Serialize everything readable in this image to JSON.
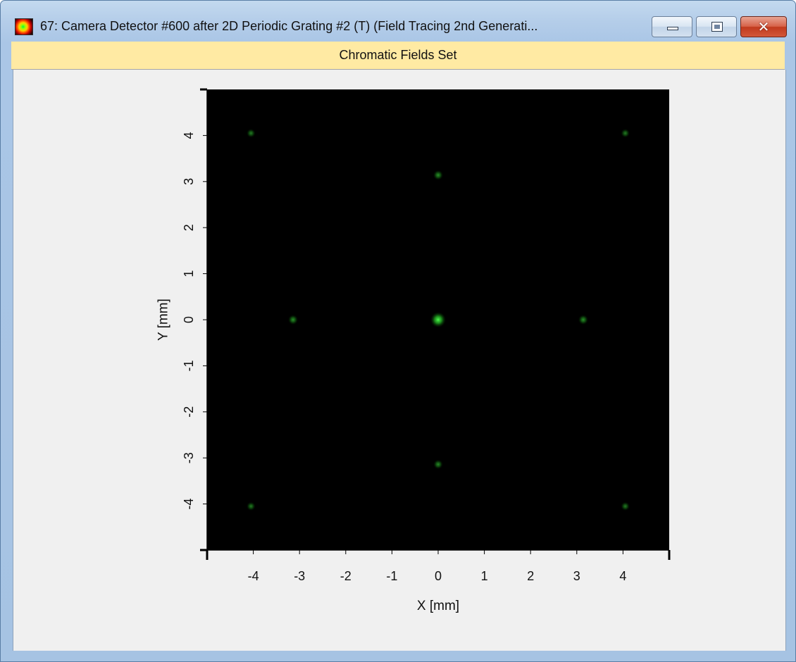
{
  "window": {
    "title": "67: Camera Detector #600 after 2D Periodic Grating #2 (T) (Field Tracing 2nd Generati...",
    "icon": "chromatic-field-icon",
    "minimize_icon": "minimize-icon",
    "maximize_icon": "restore-icon",
    "close_glyph": "✕"
  },
  "header": {
    "label": "Chromatic Fields Set"
  },
  "chart_data": {
    "type": "scatter",
    "title": "",
    "xlabel": "X [mm]",
    "ylabel": "Y [mm]",
    "xlim": [
      -5,
      5
    ],
    "ylim": [
      -5,
      5
    ],
    "x_ticks": [
      -4,
      -3,
      -2,
      -1,
      0,
      1,
      2,
      3,
      4
    ],
    "y_ticks": [
      -4,
      -3,
      -2,
      -1,
      0,
      1,
      2,
      3,
      4
    ],
    "x_tick_labels": [
      "-4",
      "-3",
      "-2",
      "-1",
      "0",
      "1",
      "2",
      "3",
      "4"
    ],
    "y_tick_labels": [
      "-4",
      "-3",
      "-2",
      "-1",
      "0",
      "1",
      "2",
      "3",
      "4"
    ],
    "background_color": "#000000",
    "spot_color": "#33ff33",
    "grid": false,
    "points": [
      {
        "x": 0,
        "y": 0,
        "intensity": 1.0
      },
      {
        "x": -3.14,
        "y": 0,
        "intensity": 0.35
      },
      {
        "x": 3.14,
        "y": 0,
        "intensity": 0.35
      },
      {
        "x": 0,
        "y": 3.14,
        "intensity": 0.35
      },
      {
        "x": 0,
        "y": -3.14,
        "intensity": 0.3
      },
      {
        "x": -4.05,
        "y": 4.05,
        "intensity": 0.22
      },
      {
        "x": 4.05,
        "y": 4.05,
        "intensity": 0.22
      },
      {
        "x": -4.05,
        "y": -4.05,
        "intensity": 0.22
      },
      {
        "x": 4.05,
        "y": -4.05,
        "intensity": 0.22
      }
    ]
  }
}
